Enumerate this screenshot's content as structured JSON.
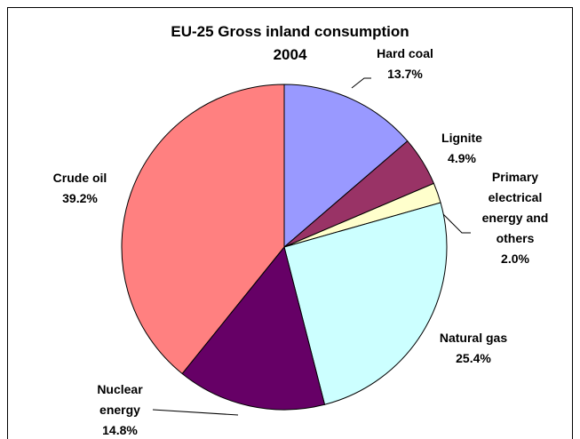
{
  "chart_data": {
    "type": "pie",
    "title": "EU-25 Gross inland consumption",
    "subtitle": "2004",
    "categories": [
      "Hard coal",
      "Lignite",
      "Primary electrical energy and others",
      "Natural gas",
      "Nuclear energy",
      "Crude oil"
    ],
    "values": [
      13.7,
      4.9,
      2.0,
      25.4,
      14.8,
      39.2
    ],
    "value_labels": [
      "13.7%",
      "4.9%",
      "2.0%",
      "25.4%",
      "14.8%",
      "39.2%"
    ],
    "colors": [
      "#9999ff",
      "#993366",
      "#ffffcc",
      "#ccffff",
      "#660066",
      "#ff8080"
    ]
  }
}
